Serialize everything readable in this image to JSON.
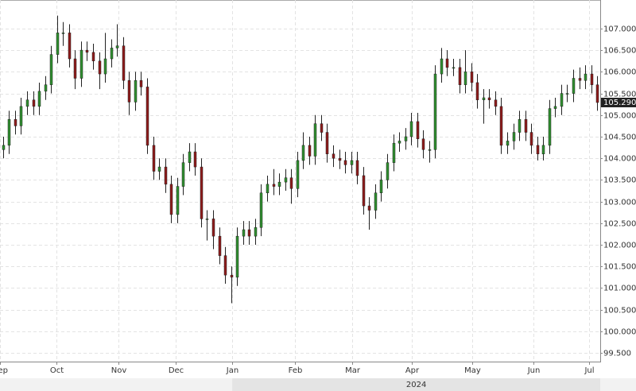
{
  "chart_data": {
    "type": "candlestick",
    "up_color": "#2f8f2f",
    "down_color": "#8e1b1b",
    "wick_color": "#222222",
    "grid": true,
    "xlim": [
      -0.5,
      99.5
    ],
    "xticks": [
      {
        "value": -0.5,
        "label": "Sep"
      },
      {
        "value": 8.9,
        "label": "Oct"
      },
      {
        "value": 19.2,
        "label": "Nov"
      },
      {
        "value": 28.8,
        "label": "Dec"
      },
      {
        "value": 38.2,
        "label": "Jan"
      },
      {
        "value": 48.6,
        "label": "Feb"
      },
      {
        "value": 58.2,
        "label": "Mar"
      },
      {
        "value": 68.1,
        "label": "Apr"
      },
      {
        "value": 78.2,
        "label": "May"
      },
      {
        "value": 88.4,
        "label": "Jun"
      },
      {
        "value": 97.6,
        "label": "Jul"
      }
    ],
    "year_label": {
      "value": 38.2,
      "label": "2024"
    },
    "ylim": [
      99.3,
      107.66
    ],
    "yticks": [
      {
        "value": 99.5,
        "label": "99.500"
      },
      {
        "value": 100,
        "label": "100.000"
      },
      {
        "value": 100.5,
        "label": "100.500"
      },
      {
        "value": 101,
        "label": "101.000"
      },
      {
        "value": 101.5,
        "label": "101.500"
      },
      {
        "value": 102,
        "label": "102.000"
      },
      {
        "value": 102.5,
        "label": "102.500"
      },
      {
        "value": 103,
        "label": "103.000"
      },
      {
        "value": 103.5,
        "label": "103.500"
      },
      {
        "value": 104,
        "label": "104.000"
      },
      {
        "value": 104.5,
        "label": "104.500"
      },
      {
        "value": 105,
        "label": "105.000"
      },
      {
        "value": 105.5,
        "label": "105.500"
      },
      {
        "value": 106,
        "label": "106.000"
      },
      {
        "value": 106.5,
        "label": "106.500"
      },
      {
        "value": 107,
        "label": "107.000"
      }
    ],
    "last_price": {
      "value": 105.29,
      "label": "105.290"
    },
    "open": [
      104.2,
      104.3,
      104.9,
      104.75,
      105.2,
      105.35,
      105.2,
      105.55,
      105.7,
      106.4,
      106.9,
      106.9,
      106.3,
      105.85,
      106.5,
      106.45,
      106.25,
      105.95,
      106.3,
      106.55,
      106.6,
      105.8,
      105.3,
      105.8,
      105.65,
      104.3,
      103.7,
      103.8,
      103.4,
      102.7,
      103.35,
      103.9,
      104.15,
      103.8,
      102.6,
      102.6,
      102.2,
      101.75,
      101.3,
      101.25,
      102.2,
      102.35,
      102.2,
      102.4,
      103.2,
      103.4,
      103.35,
      103.45,
      103.55,
      103.3,
      103.95,
      104.3,
      104.05,
      104.8,
      104.6,
      104.1,
      104.0,
      103.95,
      103.85,
      103.95,
      103.6,
      102.9,
      102.8,
      103.2,
      103.5,
      103.9,
      104.35,
      104.4,
      104.5,
      104.85,
      104.45,
      104.2,
      104.2,
      105.95,
      106.3,
      106.1,
      106.1,
      105.7,
      106.0,
      105.75,
      105.35,
      105.4,
      105.35,
      105.2,
      104.3,
      104.4,
      104.6,
      104.9,
      104.6,
      104.3,
      104.1,
      104.3,
      105.15,
      105.2,
      105.5,
      105.5,
      105.85,
      105.8,
      105.95,
      105.7
    ],
    "high": [
      104.5,
      105.1,
      105.1,
      105.4,
      105.55,
      105.55,
      105.75,
      105.9,
      106.6,
      107.3,
      107.15,
      107.1,
      106.5,
      106.7,
      106.7,
      106.65,
      106.45,
      106.9,
      106.75,
      107.1,
      106.8,
      106.0,
      106.0,
      106.0,
      105.85,
      104.5,
      104.0,
      104.0,
      103.6,
      103.55,
      104.1,
      104.35,
      104.35,
      104.0,
      102.8,
      102.8,
      102.4,
      101.95,
      101.5,
      102.4,
      102.55,
      102.55,
      102.6,
      103.4,
      103.6,
      103.75,
      103.65,
      103.75,
      103.75,
      104.15,
      104.6,
      104.5,
      105.0,
      105.0,
      104.8,
      104.3,
      104.2,
      104.15,
      104.15,
      104.15,
      103.8,
      103.1,
      103.4,
      103.7,
      104.1,
      104.55,
      104.6,
      104.7,
      105.05,
      105.05,
      104.65,
      104.4,
      106.15,
      106.55,
      106.5,
      106.3,
      106.3,
      106.5,
      106.2,
      105.95,
      105.6,
      105.6,
      105.55,
      105.4,
      104.6,
      104.8,
      105.1,
      105.1,
      104.8,
      104.5,
      104.5,
      105.35,
      105.4,
      105.7,
      105.7,
      106.05,
      106.1,
      106.15,
      106.15,
      105.9
    ],
    "low": [
      104.0,
      104.1,
      104.55,
      104.55,
      105.0,
      105.0,
      105.0,
      105.35,
      105.5,
      106.2,
      106.6,
      106.1,
      105.6,
      105.65,
      106.25,
      106.05,
      105.6,
      105.75,
      106.1,
      106.35,
      105.6,
      105.0,
      105.1,
      105.45,
      104.1,
      103.5,
      103.5,
      103.2,
      102.5,
      102.5,
      103.15,
      103.7,
      103.6,
      102.4,
      102.1,
      101.9,
      101.55,
      101.1,
      100.65,
      101.05,
      102.0,
      102.0,
      102.0,
      102.2,
      103.0,
      103.15,
      103.15,
      103.25,
      102.95,
      103.1,
      103.75,
      103.85,
      103.85,
      104.4,
      103.9,
      103.8,
      103.75,
      103.65,
      103.65,
      103.4,
      102.7,
      102.35,
      102.6,
      103.0,
      103.3,
      103.7,
      104.15,
      104.2,
      104.3,
      104.25,
      104.0,
      103.9,
      104.0,
      105.75,
      105.9,
      105.9,
      105.5,
      105.5,
      105.55,
      105.15,
      104.8,
      105.15,
      105.0,
      104.1,
      104.1,
      104.2,
      104.4,
      104.4,
      104.1,
      103.95,
      103.95,
      104.1,
      104.95,
      105.0,
      105.3,
      105.3,
      105.6,
      105.6,
      105.5,
      105.1
    ],
    "close": [
      104.3,
      104.9,
      104.75,
      105.2,
      105.35,
      105.2,
      105.55,
      105.7,
      106.4,
      106.9,
      106.9,
      106.3,
      105.85,
      106.5,
      106.45,
      106.25,
      105.95,
      106.3,
      106.55,
      106.6,
      105.8,
      105.3,
      105.8,
      105.65,
      104.3,
      103.7,
      103.8,
      103.4,
      102.7,
      103.35,
      103.9,
      104.15,
      103.8,
      102.6,
      102.6,
      102.2,
      101.75,
      101.3,
      101.25,
      102.2,
      102.35,
      102.2,
      102.4,
      103.2,
      103.4,
      103.35,
      103.45,
      103.55,
      103.3,
      103.95,
      104.3,
      104.05,
      104.8,
      104.6,
      104.1,
      104.0,
      103.95,
      103.85,
      103.95,
      103.6,
      102.9,
      102.8,
      103.2,
      103.5,
      103.9,
      104.35,
      104.4,
      104.5,
      104.85,
      104.45,
      104.2,
      104.2,
      105.95,
      106.3,
      106.1,
      106.1,
      105.7,
      106.0,
      105.75,
      105.35,
      105.4,
      105.35,
      105.2,
      104.3,
      104.4,
      104.6,
      104.9,
      104.6,
      104.3,
      104.1,
      104.3,
      105.15,
      105.2,
      105.5,
      105.5,
      105.85,
      105.8,
      105.95,
      105.7,
      105.29
    ]
  }
}
